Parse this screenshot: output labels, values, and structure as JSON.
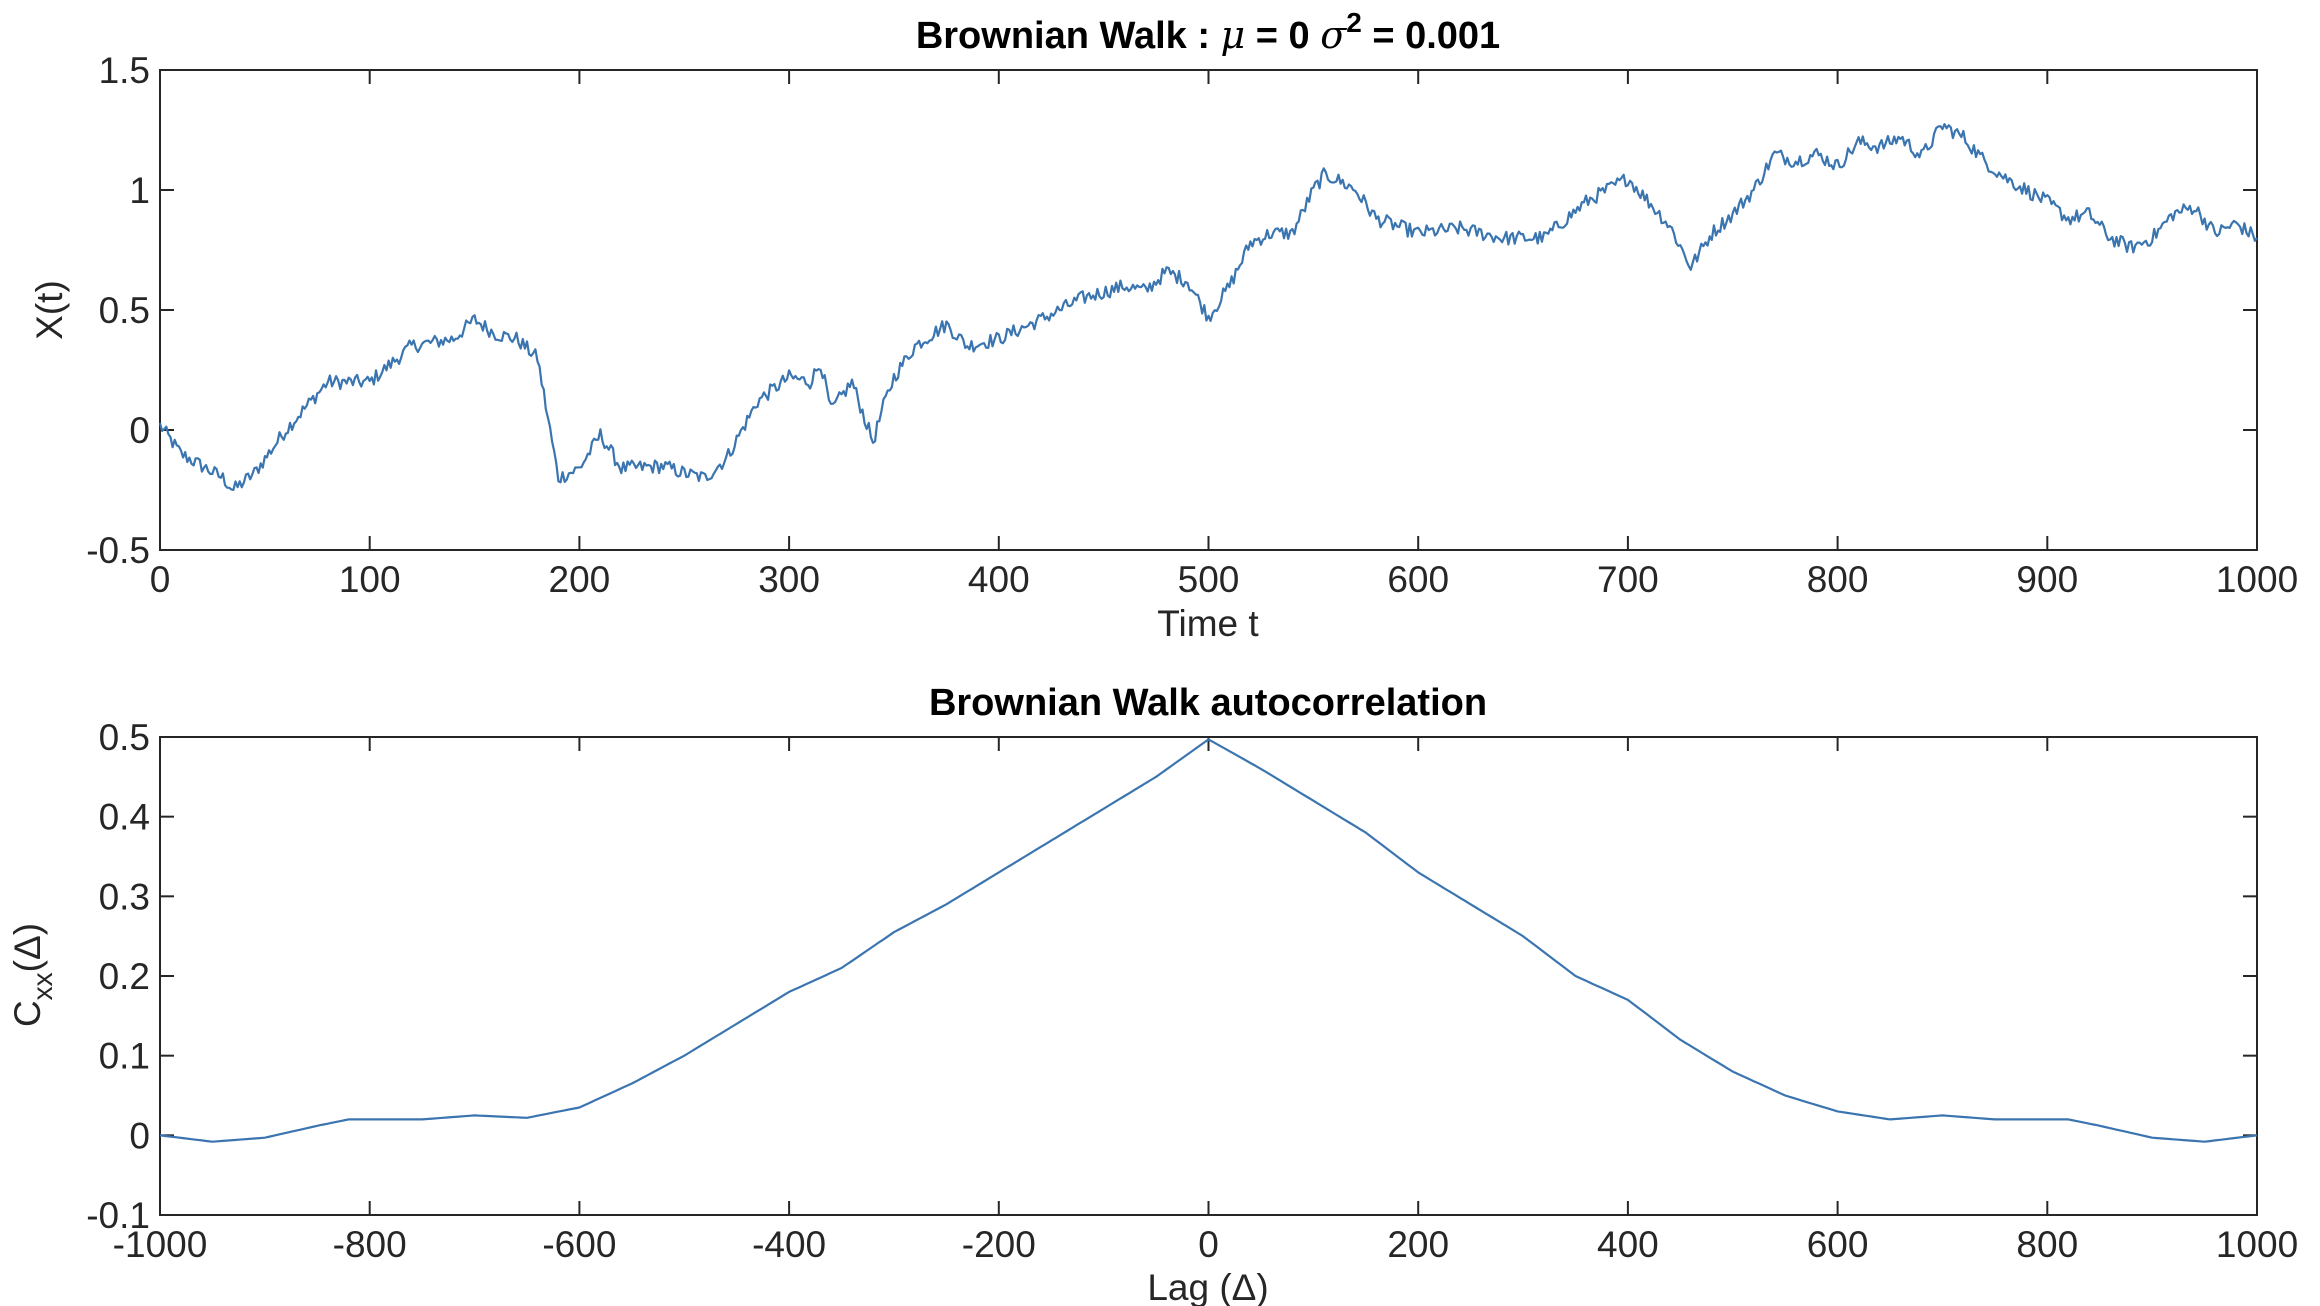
{
  "chart_data": [
    {
      "type": "line",
      "title": "Brownian Walk : μ = 0 σ² = 0.001",
      "title_parts": {
        "prefix": "Brownian Walk : ",
        "mu": "μ",
        "mu_eq": " = 0 ",
        "sigma": "σ",
        "sup": "2",
        "tail": " = 0.001"
      },
      "xlabel": "Time t",
      "ylabel": "X(t)",
      "xlim": [
        0,
        1000
      ],
      "ylim": [
        -0.5,
        1.5
      ],
      "xticks": [
        "0",
        "100",
        "200",
        "300",
        "400",
        "500",
        "600",
        "700",
        "800",
        "900",
        "1000"
      ],
      "xtick_values": [
        0,
        100,
        200,
        300,
        400,
        500,
        600,
        700,
        800,
        900,
        1000
      ],
      "yticks": [
        "-0.5",
        "0",
        "0.5",
        "1",
        "1.5"
      ],
      "ytick_values": [
        -0.5,
        0,
        0.5,
        1,
        1.5
      ],
      "grid": false,
      "color": "#3b75b0",
      "series": [
        {
          "name": "X(t)",
          "x": [
            0,
            10,
            20,
            30,
            35,
            45,
            60,
            80,
            100,
            120,
            140,
            150,
            160,
            170,
            180,
            185,
            190,
            200,
            210,
            220,
            240,
            250,
            260,
            270,
            285,
            300,
            310,
            315,
            320,
            330,
            340,
            345,
            350,
            360,
            375,
            385,
            400,
            420,
            440,
            460,
            470,
            480,
            490,
            500,
            510,
            520,
            530,
            540,
            550,
            555,
            560,
            570,
            580,
            590,
            600,
            620,
            640,
            660,
            680,
            700,
            710,
            720,
            730,
            740,
            750,
            760,
            770,
            780,
            790,
            800,
            810,
            820,
            830,
            840,
            850,
            860,
            870,
            880,
            890,
            900,
            910,
            920,
            930,
            940,
            950,
            960,
            970,
            980,
            990,
            1000
          ],
          "values": [
            0.02,
            -0.1,
            -0.15,
            -0.2,
            -0.25,
            -0.18,
            0.0,
            0.2,
            0.2,
            0.35,
            0.38,
            0.46,
            0.4,
            0.38,
            0.3,
            0.05,
            -0.2,
            -0.16,
            -0.02,
            -0.16,
            -0.15,
            -0.18,
            -0.2,
            -0.12,
            0.12,
            0.22,
            0.2,
            0.28,
            0.08,
            0.2,
            -0.05,
            0.1,
            0.22,
            0.35,
            0.44,
            0.35,
            0.38,
            0.46,
            0.55,
            0.6,
            0.58,
            0.66,
            0.62,
            0.47,
            0.6,
            0.78,
            0.82,
            0.82,
            1.0,
            1.06,
            1.05,
            1.0,
            0.88,
            0.85,
            0.82,
            0.84,
            0.8,
            0.8,
            0.95,
            1.05,
            0.95,
            0.85,
            0.68,
            0.82,
            0.9,
            1.0,
            1.15,
            1.12,
            1.15,
            1.1,
            1.2,
            1.18,
            1.22,
            1.14,
            1.27,
            1.22,
            1.12,
            1.05,
            1.0,
            0.95,
            0.88,
            0.9,
            0.8,
            0.76,
            0.8,
            0.9,
            0.93,
            0.82,
            0.86,
            0.8
          ]
        }
      ]
    },
    {
      "type": "line",
      "title": "Brownian Walk autocorrelation",
      "xlabel": "Lag (Δ)",
      "ylabel": "C_xx(Δ)",
      "ylabel_parts": {
        "main": "C",
        "sub": "xx",
        "arg": "(Δ)"
      },
      "xlim": [
        -1000,
        1000
      ],
      "ylim": [
        -0.1,
        0.5
      ],
      "xticks": [
        "-1000",
        "-800",
        "-600",
        "-400",
        "-200",
        "0",
        "200",
        "400",
        "600",
        "800",
        "1000"
      ],
      "xtick_values": [
        -1000,
        -800,
        -600,
        -400,
        -200,
        0,
        200,
        400,
        600,
        800,
        1000
      ],
      "yticks": [
        "-0.1",
        "0",
        "0.1",
        "0.2",
        "0.3",
        "0.4",
        "0.5"
      ],
      "ytick_values": [
        -0.1,
        0,
        0.1,
        0.2,
        0.3,
        0.4,
        0.5
      ],
      "grid": false,
      "color": "#3b75b0",
      "series": [
        {
          "name": "Cxx",
          "x": [
            -1000,
            -950,
            -900,
            -850,
            -820,
            -750,
            -700,
            -650,
            -600,
            -550,
            -500,
            -450,
            -400,
            -350,
            -300,
            -250,
            -200,
            -150,
            -100,
            -50,
            0,
            50,
            100,
            150,
            200,
            250,
            300,
            350,
            400,
            450,
            500,
            550,
            600,
            650,
            700,
            750,
            820,
            850,
            900,
            950,
            1000
          ],
          "values": [
            0.0,
            -0.008,
            -0.003,
            0.012,
            0.02,
            0.02,
            0.025,
            0.022,
            0.035,
            0.065,
            0.1,
            0.14,
            0.18,
            0.21,
            0.255,
            0.29,
            0.33,
            0.37,
            0.41,
            0.45,
            0.497,
            0.46,
            0.42,
            0.38,
            0.33,
            0.29,
            0.25,
            0.2,
            0.17,
            0.12,
            0.08,
            0.05,
            0.03,
            0.02,
            0.025,
            0.02,
            0.02,
            0.012,
            -0.003,
            -0.008,
            0.0
          ]
        }
      ]
    }
  ]
}
